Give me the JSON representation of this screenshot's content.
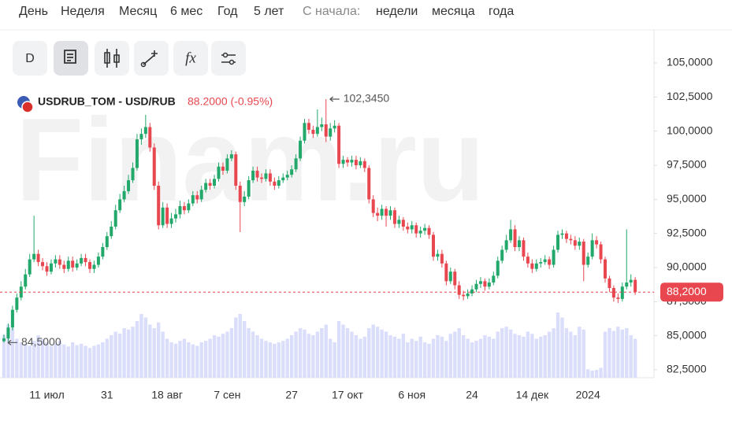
{
  "menu": {
    "periods": [
      "День",
      "Неделя",
      "Месяц",
      "6 мес",
      "Год",
      "5 лет"
    ],
    "since_label": "С начала:",
    "since": [
      "недели",
      "месяца",
      "года"
    ]
  },
  "toolbar": {
    "interval": "D",
    "formula": "fx"
  },
  "chart_data": {
    "type": "candlestick",
    "symbol": "USDRUB_TOM - USD/RUB",
    "quote": "88.2000 (-0.95%)",
    "watermark": "Finam.ru",
    "categories": [
      null,
      null,
      null,
      null,
      null,
      null,
      null,
      null,
      null,
      null,
      "11 июл",
      null,
      null,
      null,
      null,
      null,
      null,
      null,
      null,
      null,
      null,
      null,
      null,
      null,
      "31",
      null,
      null,
      null,
      null,
      null,
      null,
      null,
      null,
      null,
      null,
      null,
      null,
      null,
      "18 авг",
      null,
      null,
      null,
      null,
      null,
      null,
      null,
      null,
      null,
      null,
      null,
      null,
      null,
      "7 сен",
      null,
      null,
      null,
      null,
      null,
      null,
      null,
      null,
      null,
      null,
      null,
      null,
      null,
      null,
      "27",
      null,
      null,
      null,
      null,
      null,
      null,
      null,
      null,
      null,
      null,
      null,
      null,
      "17 окт",
      null,
      null,
      null,
      null,
      null,
      null,
      null,
      null,
      null,
      null,
      null,
      null,
      null,
      null,
      "6 ноя",
      null,
      null,
      null,
      null,
      null,
      null,
      null,
      null,
      null,
      null,
      null,
      null,
      null,
      "24",
      null,
      null,
      null,
      null,
      null,
      null,
      null,
      null,
      null,
      null,
      null,
      null,
      null,
      "14 дек",
      null,
      null,
      null,
      null,
      null,
      null,
      null,
      null,
      null,
      null,
      null,
      null,
      "2024",
      null,
      null,
      null,
      null,
      null,
      null,
      null,
      null,
      null,
      null,
      null
    ],
    "open": [
      84.6,
      84.8,
      85.6,
      86.9,
      87.8,
      88.6,
      89.5,
      90.6,
      91.0,
      90.4,
      90.1,
      89.7,
      90.3,
      90.6,
      90.2,
      89.9,
      90.5,
      90.0,
      90.3,
      90.7,
      90.4,
      89.9,
      90.2,
      90.8,
      91.5,
      92.3,
      93.0,
      94.2,
      95.0,
      95.6,
      96.4,
      97.3,
      99.4,
      99.8,
      100.3,
      98.8,
      96.0,
      93.1,
      94.4,
      93.2,
      93.6,
      93.9,
      94.5,
      94.2,
      94.7,
      95.3,
      95.0,
      95.7,
      96.2,
      96.0,
      96.5,
      97.4,
      97.1,
      98.0,
      98.3,
      96.0,
      94.8,
      95.2,
      96.4,
      97.1,
      96.6,
      96.5,
      96.9,
      96.3,
      96.0,
      96.4,
      96.6,
      96.8,
      97.2,
      98.0,
      99.3,
      100.6,
      100.1,
      99.8,
      100.3,
      100.5,
      99.6,
      100.2,
      100.4,
      97.6,
      97.9,
      97.7,
      97.9,
      97.5,
      97.8,
      97.3,
      95.0,
      94.0,
      93.8,
      94.3,
      93.8,
      94.2,
      93.2,
      93.5,
      93.0,
      92.8,
      93.1,
      92.5,
      92.7,
      92.9,
      92.4,
      90.8,
      91.0,
      90.3,
      89.0,
      89.7,
      88.7,
      88.0,
      87.9,
      88.1,
      88.4,
      88.8,
      89.0,
      88.6,
      88.9,
      89.4,
      90.5,
      91.3,
      92.0,
      92.8,
      91.5,
      92.0,
      90.8,
      90.3,
      89.9,
      90.3,
      90.4,
      90.6,
      90.2,
      91.3,
      92.4,
      92.5,
      92.1,
      92.0,
      91.6,
      91.9,
      90.2,
      90.8,
      92.0,
      91.7,
      90.6,
      89.2,
      88.5,
      87.8,
      87.7,
      88.6,
      88.9,
      89.1
    ],
    "high": [
      85.1,
      85.9,
      87.2,
      88.1,
      89.0,
      89.9,
      91.0,
      93.8,
      91.3,
      90.7,
      90.4,
      90.6,
      90.9,
      90.9,
      90.5,
      90.8,
      90.8,
      90.6,
      91.0,
      91.0,
      90.6,
      90.5,
      91.1,
      91.8,
      92.6,
      93.4,
      94.6,
      95.4,
      96.0,
      96.8,
      97.7,
      99.8,
      100.2,
      101.2,
      100.6,
      99.1,
      96.3,
      94.8,
      94.7,
      94.0,
      94.3,
      94.9,
      94.8,
      95.0,
      95.6,
      95.6,
      96.0,
      96.5,
      96.5,
      96.8,
      97.7,
      97.7,
      98.3,
      98.6,
      98.5,
      96.3,
      95.6,
      96.7,
      97.4,
      97.4,
      96.9,
      97.2,
      97.2,
      96.6,
      96.7,
      96.9,
      97.1,
      97.5,
      98.3,
      99.6,
      100.9,
      100.9,
      100.4,
      101.6,
      101.0,
      102.345,
      100.6,
      100.8,
      100.6,
      98.2,
      98.1,
      98.2,
      98.2,
      98.1,
      98.0,
      97.5,
      95.3,
      94.4,
      94.6,
      94.5,
      94.5,
      94.4,
      93.8,
      93.7,
      93.3,
      93.4,
      93.3,
      93.0,
      93.2,
      93.1,
      92.6,
      91.3,
      91.3,
      90.5,
      90.0,
      89.9,
      89.0,
      88.3,
      88.4,
      88.7,
      89.1,
      89.3,
      89.2,
      89.2,
      89.7,
      90.8,
      91.6,
      92.4,
      93.5,
      93.1,
      92.3,
      92.2,
      91.1,
      90.6,
      90.6,
      90.7,
      90.9,
      90.8,
      91.6,
      92.7,
      92.8,
      92.7,
      92.4,
      92.3,
      92.2,
      92.1,
      91.1,
      92.5,
      92.3,
      91.9,
      90.8,
      89.4,
      88.7,
      88.1,
      88.9,
      92.8,
      89.5,
      89.3
    ],
    "low": [
      84.5,
      84.6,
      85.4,
      86.7,
      87.6,
      88.4,
      89.3,
      90.4,
      90.1,
      89.8,
      89.4,
      89.5,
      90.0,
      89.9,
      89.6,
      89.7,
      89.7,
      89.8,
      90.1,
      90.1,
      89.6,
      89.6,
      90.0,
      90.6,
      91.3,
      92.1,
      92.8,
      94.0,
      94.8,
      95.4,
      96.2,
      97.1,
      99.0,
      99.5,
      98.5,
      95.7,
      92.8,
      92.9,
      92.9,
      92.9,
      93.3,
      93.6,
      93.9,
      94.0,
      94.5,
      94.7,
      94.8,
      95.5,
      95.7,
      95.8,
      96.3,
      96.8,
      96.9,
      97.8,
      95.7,
      92.6,
      94.5,
      95.0,
      96.2,
      96.3,
      96.2,
      96.3,
      96.0,
      95.7,
      95.8,
      96.2,
      96.4,
      96.6,
      97.0,
      97.8,
      99.1,
      99.8,
      99.5,
      99.6,
      100.0,
      99.2,
      99.3,
      99.9,
      97.3,
      97.3,
      97.4,
      97.4,
      97.2,
      97.3,
      97.0,
      94.7,
      93.7,
      93.4,
      93.5,
      93.0,
      93.5,
      92.9,
      92.9,
      92.7,
      92.5,
      92.5,
      92.2,
      92.2,
      92.4,
      92.1,
      90.5,
      90.5,
      90.0,
      88.7,
      88.8,
      88.4,
      87.7,
      87.6,
      87.7,
      87.9,
      88.2,
      88.5,
      88.3,
      88.4,
      88.7,
      89.2,
      90.3,
      91.1,
      91.8,
      91.2,
      91.2,
      90.5,
      90.0,
      89.6,
      89.7,
      90.0,
      90.2,
      89.9,
      90.0,
      91.1,
      92.1,
      91.8,
      91.7,
      91.3,
      91.3,
      89.0,
      90.0,
      90.6,
      91.4,
      90.3,
      88.9,
      88.2,
      87.5,
      87.4,
      87.5,
      88.4,
      88.6,
      88.0
    ],
    "close": [
      84.8,
      85.6,
      86.9,
      87.8,
      88.6,
      89.5,
      90.6,
      91.0,
      90.4,
      90.1,
      89.7,
      90.3,
      90.6,
      90.2,
      89.9,
      90.5,
      90.0,
      90.3,
      90.7,
      90.4,
      89.9,
      90.2,
      90.8,
      91.5,
      92.3,
      93.0,
      94.2,
      95.0,
      95.6,
      96.4,
      97.3,
      99.4,
      99.8,
      100.3,
      98.8,
      96.0,
      93.1,
      94.4,
      93.2,
      93.6,
      93.9,
      94.5,
      94.2,
      94.7,
      95.3,
      95.0,
      95.7,
      96.2,
      96.0,
      96.5,
      97.4,
      97.1,
      98.0,
      98.3,
      96.0,
      94.8,
      95.2,
      96.4,
      97.1,
      96.6,
      96.5,
      96.9,
      96.3,
      96.0,
      96.4,
      96.6,
      96.8,
      97.2,
      98.0,
      99.3,
      100.6,
      100.1,
      99.8,
      100.3,
      100.5,
      99.6,
      100.2,
      100.4,
      97.6,
      97.9,
      97.7,
      97.9,
      97.5,
      97.8,
      97.3,
      95.0,
      94.0,
      93.8,
      94.3,
      93.8,
      94.2,
      93.2,
      93.5,
      93.0,
      92.8,
      93.1,
      92.5,
      92.7,
      92.9,
      92.4,
      90.8,
      91.0,
      90.3,
      89.0,
      89.7,
      88.7,
      88.0,
      87.9,
      88.1,
      88.4,
      88.8,
      89.0,
      88.6,
      88.9,
      89.4,
      90.5,
      91.3,
      92.0,
      92.8,
      91.5,
      92.0,
      90.8,
      90.3,
      89.9,
      90.3,
      90.4,
      90.6,
      90.2,
      91.3,
      92.4,
      92.5,
      92.1,
      92.0,
      91.6,
      91.9,
      90.2,
      90.8,
      92.0,
      91.7,
      90.6,
      89.2,
      88.5,
      87.8,
      87.7,
      88.6,
      88.9,
      89.1,
      88.2
    ],
    "volume": [
      60,
      75,
      70,
      55,
      50,
      48,
      45,
      52,
      60,
      55,
      50,
      45,
      48,
      52,
      47,
      44,
      50,
      46,
      48,
      45,
      42,
      45,
      47,
      50,
      55,
      60,
      65,
      62,
      70,
      68,
      72,
      80,
      90,
      85,
      75,
      70,
      78,
      65,
      55,
      50,
      48,
      52,
      55,
      50,
      47,
      45,
      50,
      52,
      55,
      60,
      58,
      62,
      65,
      70,
      85,
      90,
      80,
      70,
      65,
      60,
      55,
      52,
      50,
      48,
      50,
      52,
      55,
      60,
      65,
      70,
      68,
      62,
      60,
      65,
      70,
      75,
      55,
      50,
      80,
      75,
      70,
      65,
      60,
      55,
      58,
      70,
      75,
      72,
      68,
      65,
      60,
      58,
      55,
      62,
      50,
      55,
      52,
      58,
      50,
      48,
      55,
      60,
      58,
      52,
      62,
      65,
      70,
      60,
      55,
      50,
      52,
      55,
      60,
      58,
      55,
      65,
      70,
      72,
      68,
      62,
      60,
      58,
      65,
      62,
      55,
      58,
      60,
      65,
      70,
      92,
      85,
      70,
      65,
      60,
      72,
      68,
      12,
      10,
      11,
      14,
      65,
      70,
      66,
      72,
      68,
      70,
      60,
      55
    ],
    "up_color": "#22a86a",
    "down_color": "#e8474f",
    "volume_color": "#dadefb",
    "ylim": [
      82.5,
      105
    ],
    "yticks": [
      {
        "value": 82.5,
        "label": "82,5000"
      },
      {
        "value": 85,
        "label": "85,0000"
      },
      {
        "value": 87.5,
        "label": "87,5000"
      },
      {
        "value": 90,
        "label": "90,0000"
      },
      {
        "value": 92.5,
        "label": "92,5000"
      },
      {
        "value": 95,
        "label": "95,0000"
      },
      {
        "value": 97.5,
        "label": "97,5000"
      },
      {
        "value": 100,
        "label": "100,0000"
      },
      {
        "value": 102.5,
        "label": "102,5000"
      },
      {
        "value": 105,
        "label": "105,0000"
      }
    ],
    "last_price": {
      "value": 88.2,
      "label": "88,2000"
    },
    "max_label": {
      "value": 102.345,
      "label": "102,3450"
    },
    "min_label": {
      "value": 84.5,
      "label": "84,5000"
    }
  }
}
